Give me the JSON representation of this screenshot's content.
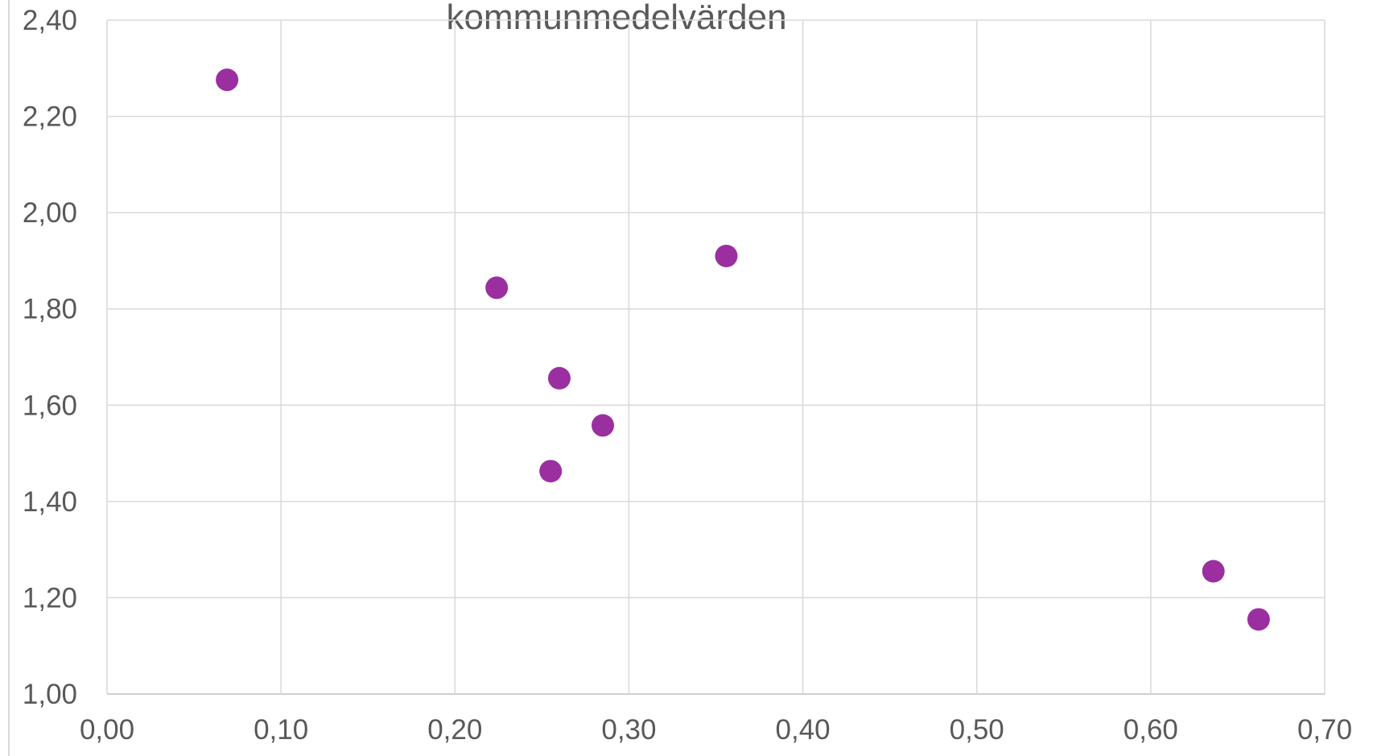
{
  "chart_data": {
    "type": "scatter",
    "title": "kommunmedelvärden",
    "series": [
      {
        "color": "#9b2fa0",
        "x": [
          0.069,
          0.224,
          0.356,
          0.26,
          0.285,
          0.255,
          0.636,
          0.662
        ],
        "values": [
          2.276,
          1.844,
          1.91,
          1.656,
          1.558,
          1.463,
          1.255,
          1.155
        ]
      }
    ],
    "xlim": [
      0,
      0.7
    ],
    "xticks": [
      {
        "value": 0,
        "label": "0,00"
      },
      {
        "value": 0.1,
        "label": "0,10"
      },
      {
        "value": 0.2,
        "label": "0,20"
      },
      {
        "value": 0.3,
        "label": "0,30"
      },
      {
        "value": 0.4,
        "label": "0,40"
      },
      {
        "value": 0.5,
        "label": "0,50"
      },
      {
        "value": 0.6,
        "label": "0,60"
      },
      {
        "value": 0.7,
        "label": "0,70"
      }
    ],
    "ylim": [
      1,
      2.4
    ],
    "yticks": [
      {
        "value": 1,
        "label": "1,00"
      },
      {
        "value": 1.2,
        "label": "1,20"
      },
      {
        "value": 1.4,
        "label": "1,40"
      },
      {
        "value": 1.6,
        "label": "1,60"
      },
      {
        "value": 1.8,
        "label": "1,80"
      },
      {
        "value": 2,
        "label": "2,00"
      },
      {
        "value": 2.2,
        "label": "2,20"
      },
      {
        "value": 2.4,
        "label": "2,40"
      }
    ],
    "grid": true
  }
}
